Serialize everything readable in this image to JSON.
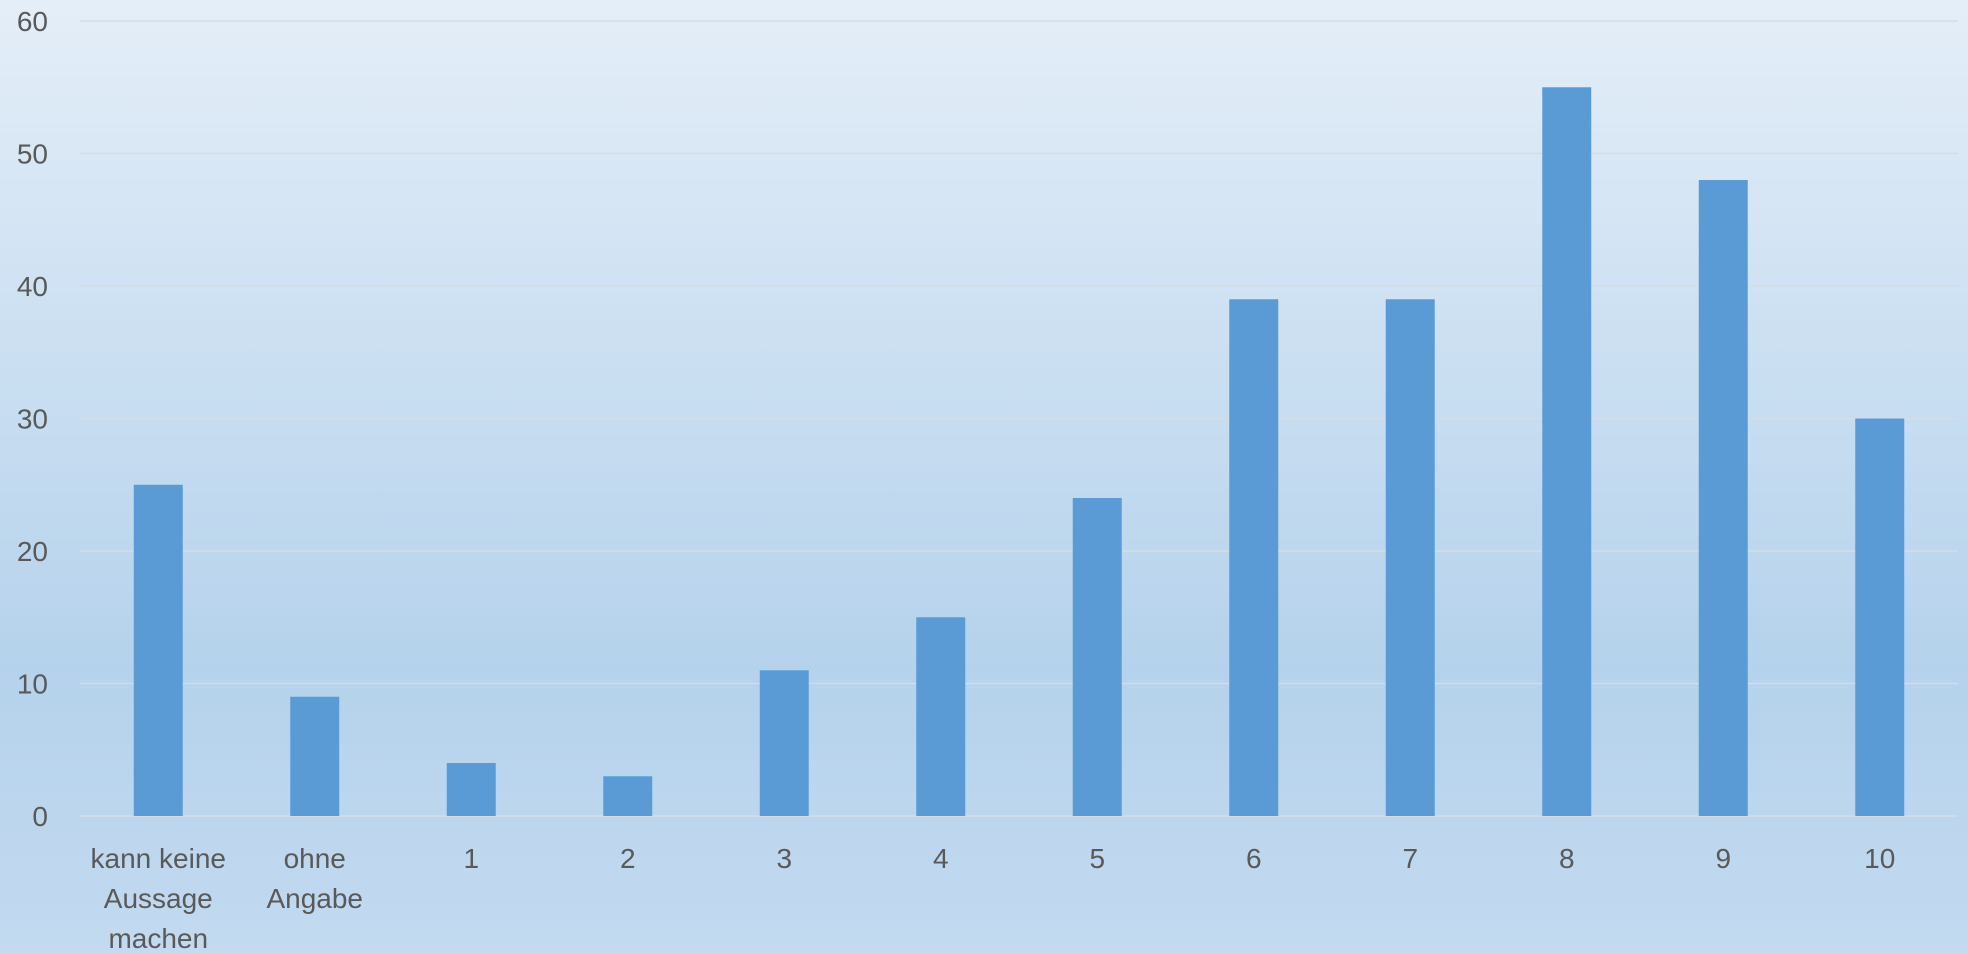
{
  "chart_data": {
    "type": "bar",
    "categories": [
      "kann keine Aussage machen",
      "ohne Angabe",
      "1",
      "2",
      "3",
      "4",
      "5",
      "6",
      "7",
      "8",
      "9",
      "10"
    ],
    "category_lines": [
      [
        "kann keine",
        "Aussage",
        "machen"
      ],
      [
        "ohne",
        "Angabe"
      ],
      [
        "1"
      ],
      [
        "2"
      ],
      [
        "3"
      ],
      [
        "4"
      ],
      [
        "5"
      ],
      [
        "6"
      ],
      [
        "7"
      ],
      [
        "8"
      ],
      [
        "9"
      ],
      [
        "10"
      ]
    ],
    "values": [
      25,
      9,
      4,
      3,
      11,
      15,
      24,
      39,
      39,
      55,
      48,
      30
    ],
    "ylim": [
      0,
      60
    ],
    "yticks": [
      "0",
      "10",
      "20",
      "30",
      "40",
      "50",
      "60"
    ],
    "grid": true,
    "legend": "none",
    "title": "",
    "xlabel": "",
    "ylabel": "",
    "colors": {
      "bar": "#5b9bd5",
      "grid": "#d4dde6",
      "tick_text": "#595959"
    }
  }
}
